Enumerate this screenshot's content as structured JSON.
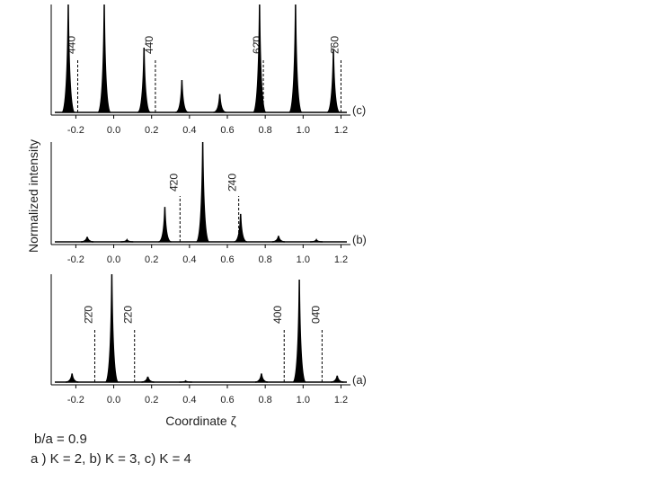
{
  "chart_data": [
    {
      "type": "spectrum",
      "panel_label": "(c)",
      "xlim": [
        -0.33,
        1.25
      ],
      "ylim": [
        0,
        1
      ],
      "xticks": [
        -0.2,
        {
          "value": 0,
          "label": "0.0"
        },
        0.2,
        0.4,
        0.6,
        0.8,
        {
          "value": 1,
          "label": "1.0"
        },
        1.2
      ],
      "x": [
        -0.24,
        -0.05,
        0.16,
        0.36,
        0.56,
        0.77,
        0.96,
        1.16
      ],
      "values": [
        1.0,
        1.0,
        0.6,
        0.3,
        0.17,
        1.0,
        1.0,
        0.58
      ],
      "annotations": [
        {
          "x": -0.19,
          "label": "4̄40"
        },
        {
          "x": 0.22,
          "label": "44̄0"
        },
        {
          "x": 0.79,
          "label": "62̄0"
        },
        {
          "x": 1.2,
          "label": "2̄60"
        }
      ]
    },
    {
      "type": "spectrum",
      "panel_label": "(b)",
      "ylabel": "Normalized intensity",
      "xlim": [
        -0.33,
        1.25
      ],
      "ylim": [
        0,
        1
      ],
      "xticks": [
        -0.2,
        {
          "value": 0,
          "label": "0.0"
        },
        0.2,
        0.4,
        0.6,
        0.8,
        {
          "value": 1,
          "label": "1.0"
        },
        1.2
      ],
      "x": [
        -0.14,
        0.07,
        0.27,
        0.47,
        0.67,
        0.87,
        1.07
      ],
      "values": [
        0.05,
        0.02,
        0.35,
        1.0,
        0.28,
        0.06,
        0.02
      ],
      "annotations": [
        {
          "x": 0.35,
          "label": "4̄20"
        },
        {
          "x": 0.66,
          "label": "2̄40"
        }
      ]
    },
    {
      "type": "spectrum",
      "panel_label": "(a)",
      "xlabel": "Coordinate ζ",
      "xlim": [
        -0.33,
        1.25
      ],
      "ylim": [
        0,
        1
      ],
      "xticks": [
        -0.2,
        {
          "value": 0,
          "label": "0.0"
        },
        0.2,
        0.4,
        0.6,
        0.8,
        {
          "value": 1,
          "label": "1.0"
        },
        1.2
      ],
      "x": [
        -0.22,
        -0.01,
        0.18,
        0.38,
        0.78,
        0.98,
        1.18
      ],
      "values": [
        0.08,
        1.0,
        0.05,
        0.01,
        0.08,
        0.95,
        0.06
      ],
      "annotations": [
        {
          "x": -0.1,
          "label": "2̄2̄0"
        },
        {
          "x": 0.11,
          "label": "2̄20"
        },
        {
          "x": 0.9,
          "label": "400"
        },
        {
          "x": 1.1,
          "label": "04̄0"
        }
      ]
    }
  ],
  "caption": [
    "b/a = 0.9",
    "a ) K = 2, b) K = 3, c) K = 4"
  ]
}
